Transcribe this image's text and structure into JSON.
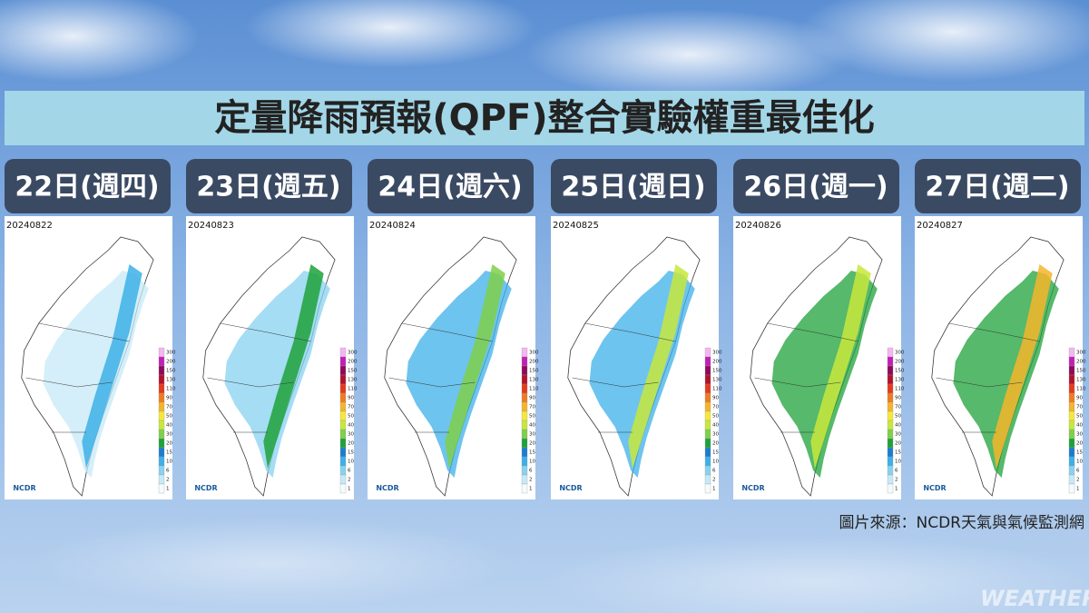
{
  "header": {
    "title": "定量降雨預報(QPF)整合實驗權重最佳化"
  },
  "panels": [
    {
      "day": "22日(週四)",
      "date": "20240822",
      "logo": "NCDR"
    },
    {
      "day": "23日(週五)",
      "date": "20240823",
      "logo": "NCDR"
    },
    {
      "day": "24日(週六)",
      "date": "20240824",
      "logo": "NCDR"
    },
    {
      "day": "25日(週日)",
      "date": "20240825",
      "logo": "NCDR"
    },
    {
      "day": "26日(週一)",
      "date": "20240826",
      "logo": "NCDR"
    },
    {
      "day": "27日(週二)",
      "date": "20240827",
      "logo": "NCDR"
    }
  ],
  "legend": {
    "labels": [
      "300",
      "200",
      "150",
      "130",
      "110",
      "90",
      "70",
      "50",
      "40",
      "30",
      "20",
      "15",
      "10",
      "6",
      "2",
      "1"
    ]
  },
  "footer": {
    "source": "圖片來源：NCDR天氣與氣候監測網",
    "watermark": "WEATHER"
  }
}
